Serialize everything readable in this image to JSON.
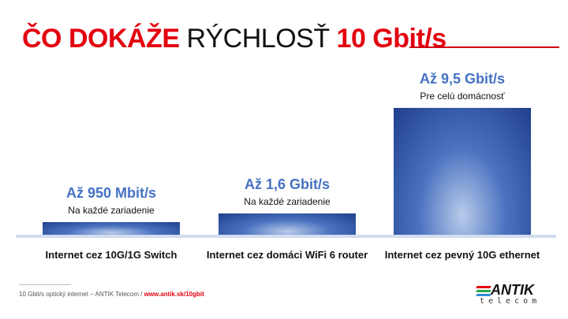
{
  "title": {
    "part1": "ČO DOKÁŽE",
    "part2": "RÝCHLOSŤ",
    "part3": "10 Gbit/s"
  },
  "chart_data": {
    "type": "bar",
    "categories": [
      "Internet cez 10G/1G Switch",
      "Internet cez domáci WiFi 6 router",
      "Internet cez pevný 10G ethernet"
    ],
    "values": [
      0.95,
      1.6,
      9.5
    ],
    "unit": "Gbit/s",
    "value_labels": [
      "Až 950 Mbit/s",
      "Až 1,6 Gbit/s",
      "Až 9,5 Gbit/s"
    ],
    "sub_labels": [
      "Na každé zariadenie",
      "Na každé zariadenie",
      "Pre celú domácnosť"
    ],
    "ylim": [
      0,
      9.5
    ],
    "grid": false,
    "colors": {
      "bar": "#2f54a8",
      "label": "#4472c4",
      "baseline": "#d3ddef"
    }
  },
  "footer": {
    "text": "10 Gbit/s optický internet – ANTIK Telecom  /",
    "url": "www.antik.sk/10gbit"
  },
  "logo": {
    "name": "ANTIK",
    "sub": "telecom",
    "colors": [
      "#e3000f",
      "#2aa84a",
      "#2e8bd6"
    ]
  }
}
